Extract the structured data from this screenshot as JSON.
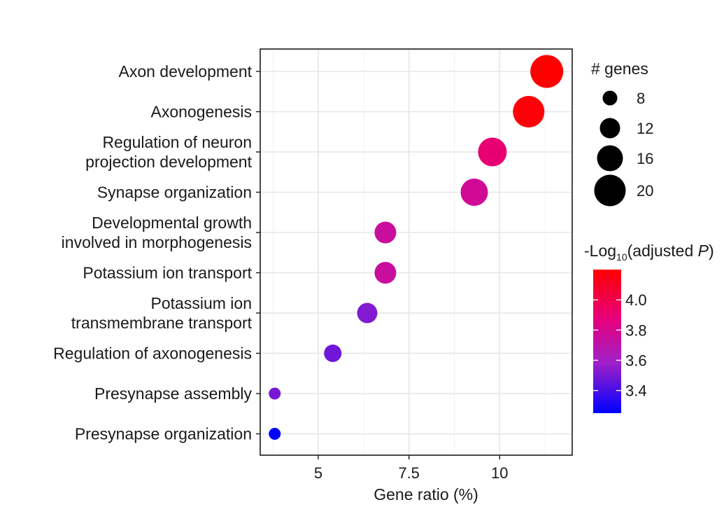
{
  "chart_data": {
    "type": "scatter",
    "title": "",
    "xlabel": "Gene ratio (%)",
    "ylabel": "",
    "xlim": [
      3.4,
      12.0
    ],
    "x_ticks": [
      5,
      7.5,
      10
    ],
    "x_tick_labels": [
      "5",
      "7.5",
      "10"
    ],
    "categories": [
      "Axon development",
      "Axonogenesis",
      "Regulation of neuron projection development",
      "Synapse organization",
      "Developmental growth involved in morphogenesis",
      "Potassium ion transport",
      "Potassium ion transmembrane transport",
      "Regulation of axonogenesis",
      "Presynapse assembly",
      "Presynapse organization"
    ],
    "category_label_lines": [
      [
        "Axon development"
      ],
      [
        "Axonogenesis"
      ],
      [
        "Regulation of neuron",
        "projection development"
      ],
      [
        "Synapse organization"
      ],
      [
        "Developmental growth",
        "involved in morphogenesis"
      ],
      [
        "Potassium ion transport"
      ],
      [
        "Potassium ion",
        "transmembrane transport"
      ],
      [
        "Regulation of axonogenesis"
      ],
      [
        "Presynapse assembly"
      ],
      [
        "Presynapse organization"
      ]
    ],
    "points": [
      {
        "category": "Axon development",
        "gene_ratio": 11.3,
        "genes": 21,
        "neg_log10_padj": 4.2
      },
      {
        "category": "Axonogenesis",
        "gene_ratio": 10.8,
        "genes": 20,
        "neg_log10_padj": 4.18
      },
      {
        "category": "Regulation of neuron projection development",
        "gene_ratio": 9.8,
        "genes": 18,
        "neg_log10_padj": 3.9
      },
      {
        "category": "Synapse organization",
        "gene_ratio": 9.3,
        "genes": 17,
        "neg_log10_padj": 3.78
      },
      {
        "category": "Developmental growth involved in morphogenesis",
        "gene_ratio": 6.85,
        "genes": 13,
        "neg_log10_padj": 3.75
      },
      {
        "category": "Potassium ion transport",
        "gene_ratio": 6.85,
        "genes": 13,
        "neg_log10_padj": 3.75
      },
      {
        "category": "Potassium ion transmembrane transport",
        "gene_ratio": 6.35,
        "genes": 12,
        "neg_log10_padj": 3.52
      },
      {
        "category": "Regulation of axonogenesis",
        "gene_ratio": 5.4,
        "genes": 10,
        "neg_log10_padj": 3.48
      },
      {
        "category": "Presynapse assembly",
        "gene_ratio": 3.8,
        "genes": 6,
        "neg_log10_padj": 3.5
      },
      {
        "category": "Presynapse organization",
        "gene_ratio": 3.8,
        "genes": 6,
        "neg_log10_padj": 3.25
      }
    ],
    "size_legend": {
      "title": "# genes",
      "values": [
        8,
        12,
        16,
        20
      ],
      "labels": [
        "8",
        "12",
        "16",
        "20"
      ]
    },
    "color_legend": {
      "title_prefix": "-Log",
      "title_subscript": "10",
      "title_middle": "(adjusted ",
      "title_italic": "P",
      "title_suffix": ")",
      "range": [
        3.25,
        4.2
      ],
      "ticks": [
        4.0,
        3.8,
        3.6,
        3.4
      ],
      "tick_labels": [
        "4.0",
        "3.8",
        "3.6",
        "3.4"
      ],
      "colors": [
        "#0000ff",
        "#a020c8",
        "#e6007e",
        "#ff0000"
      ]
    }
  }
}
